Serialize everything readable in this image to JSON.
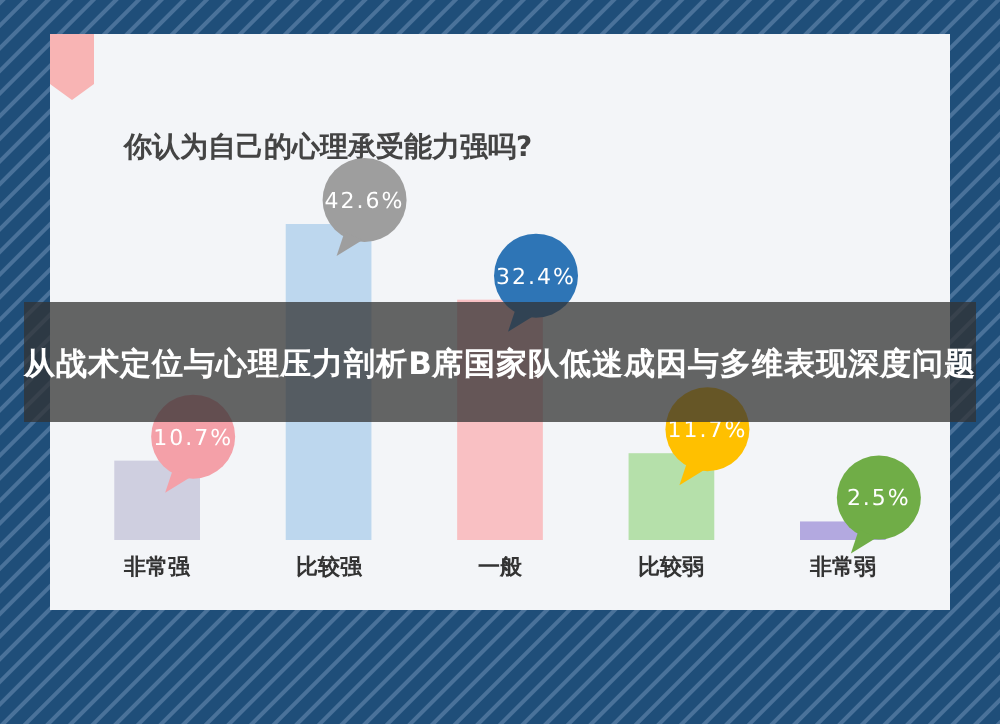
{
  "chart_data": {
    "type": "bar",
    "title": "你认为自己的心理承受能力强吗?",
    "categories": [
      "非常强",
      "比较强",
      "一般",
      "比较弱",
      "非常弱"
    ],
    "values": [
      10.7,
      42.6,
      32.4,
      11.7,
      2.5
    ],
    "colors": [
      "#cfcfe0",
      "#bdd7ee",
      "#f9c0c3",
      "#b5e0aa",
      "#b3a9e0"
    ],
    "value_labels": [
      "10.7%",
      "42.6%",
      "32.4%",
      "11.7%",
      "2.5%"
    ],
    "annotations": [
      "从战术定位与心理压力剖析B席国家队低迷成因与多维表现深度问题"
    ]
  }
}
